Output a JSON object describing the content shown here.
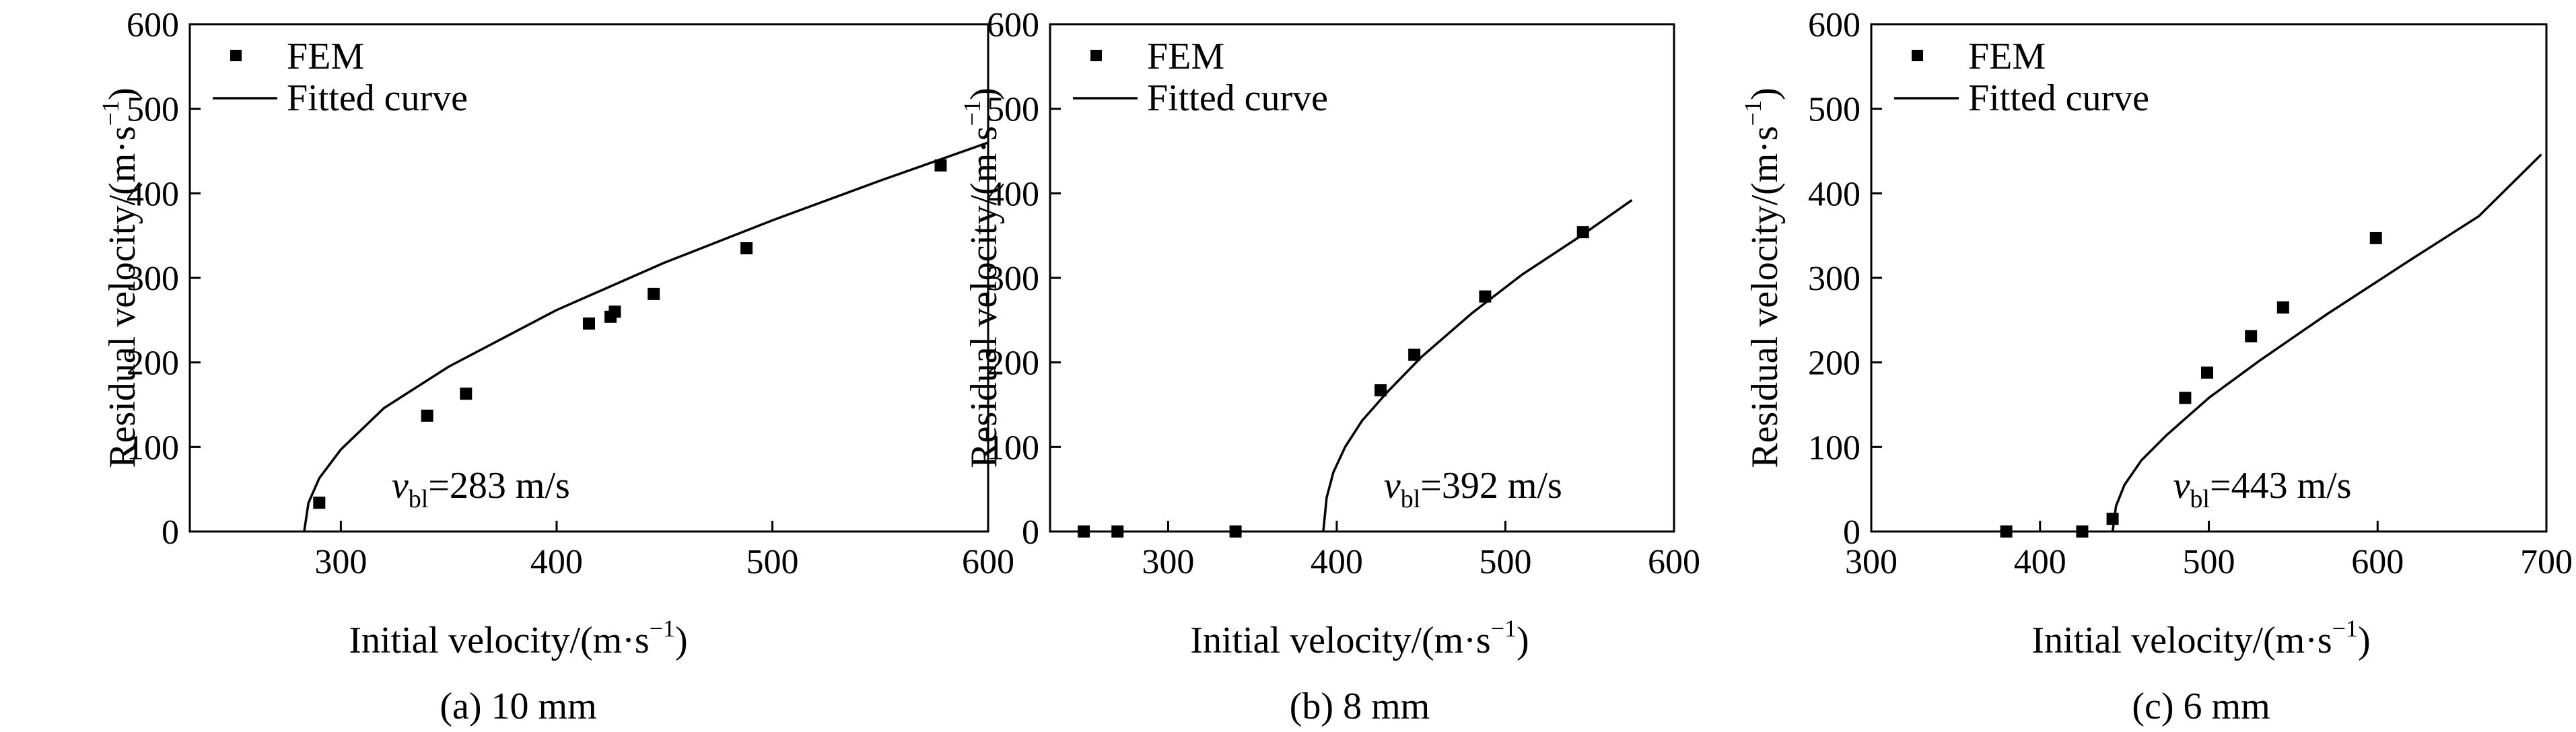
{
  "chart_data": [
    {
      "type": "scatter",
      "caption": "(a) 10 mm",
      "xlabel": "Initial velocity/(m·s",
      "xlabel_exp": "−1",
      "xlabel_close": ")",
      "ylabel": "Residual velocity/(m·s",
      "ylabel_exp": "−1",
      "ylabel_close": ")",
      "xlim": [
        230,
        600
      ],
      "ylim": [
        0,
        600
      ],
      "xticks": [
        300,
        400,
        500,
        600
      ],
      "yticks": [
        0,
        100,
        200,
        300,
        400,
        500,
        600
      ],
      "legend": {
        "position": "top-left",
        "marker_label": "FEM",
        "line_label": "Fitted curve"
      },
      "annotation": {
        "symbol": "v",
        "subscript": "bl",
        "value": "=283 m/s"
      },
      "series": [
        {
          "name": "FEM",
          "kind": "points",
          "x": [
            290,
            340,
            358,
            415,
            425,
            427,
            445,
            488,
            578
          ],
          "y": [
            34,
            137,
            163,
            246,
            254,
            260,
            281,
            335,
            433
          ]
        },
        {
          "name": "Fitted curve",
          "kind": "line",
          "v_bl": 283,
          "x": [
            283,
            285,
            290,
            300,
            320,
            350,
            400,
            450,
            500,
            550,
            600
          ],
          "y": [
            0,
            34,
            63,
            97,
            146,
            195,
            262,
            318,
            368,
            415,
            460
          ]
        }
      ]
    },
    {
      "type": "scatter",
      "caption": "(b) 8 mm",
      "xlabel": "Initial velocity/(m·s",
      "xlabel_exp": "−1",
      "xlabel_close": ")",
      "ylabel": "Residual velocity/(m·s",
      "ylabel_exp": "−1",
      "ylabel_close": ")",
      "xlim": [
        230,
        600
      ],
      "ylim": [
        0,
        600
      ],
      "xticks": [
        300,
        400,
        500,
        600
      ],
      "yticks": [
        0,
        100,
        200,
        300,
        400,
        500,
        600
      ],
      "legend": {
        "position": "top-left",
        "marker_label": "FEM",
        "line_label": "Fitted curve"
      },
      "annotation": {
        "symbol": "v",
        "subscript": "bl",
        "value": "=392 m/s"
      },
      "series": [
        {
          "name": "FEM",
          "kind": "points",
          "x": [
            250,
            270,
            340,
            426,
            446,
            488,
            546
          ],
          "y": [
            0,
            0,
            0,
            167,
            209,
            278,
            354
          ]
        },
        {
          "name": "Fitted curve",
          "kind": "line",
          "v_bl": 392,
          "x": [
            392,
            394,
            398,
            405,
            415,
            430,
            450,
            480,
            510,
            545,
            575
          ],
          "y": [
            0,
            40,
            70,
            100,
            131,
            165,
            206,
            258,
            304,
            350,
            392
          ]
        }
      ]
    },
    {
      "type": "scatter",
      "caption": "(c) 6 mm",
      "xlabel": "Initial velocity/(m·s",
      "xlabel_exp": "−1",
      "xlabel_close": ")",
      "ylabel": "Residual velocity/(m·s",
      "ylabel_exp": "−1",
      "ylabel_close": ")",
      "xlim": [
        300,
        700
      ],
      "ylim": [
        0,
        600
      ],
      "xticks": [
        300,
        400,
        500,
        600,
        700
      ],
      "yticks": [
        0,
        100,
        200,
        300,
        400,
        500,
        600
      ],
      "legend": {
        "position": "top-left",
        "marker_label": "FEM",
        "line_label": "Fitted curve"
      },
      "annotation": {
        "symbol": "v",
        "subscript": "bl",
        "value": "=443 m/s"
      },
      "series": [
        {
          "name": "FEM",
          "kind": "points",
          "x": [
            380,
            425,
            443,
            486,
            499,
            525,
            544,
            599
          ],
          "y": [
            0,
            0,
            15,
            158,
            188,
            231,
            265,
            347
          ]
        },
        {
          "name": "Fitted curve",
          "kind": "line",
          "v_bl": 443,
          "x": [
            443,
            445,
            450,
            460,
            475,
            500,
            530,
            570,
            620,
            660,
            697
          ],
          "y": [
            0,
            30,
            55,
            84,
            114,
            158,
            202,
            257,
            322,
            373,
            446
          ]
        }
      ]
    }
  ]
}
